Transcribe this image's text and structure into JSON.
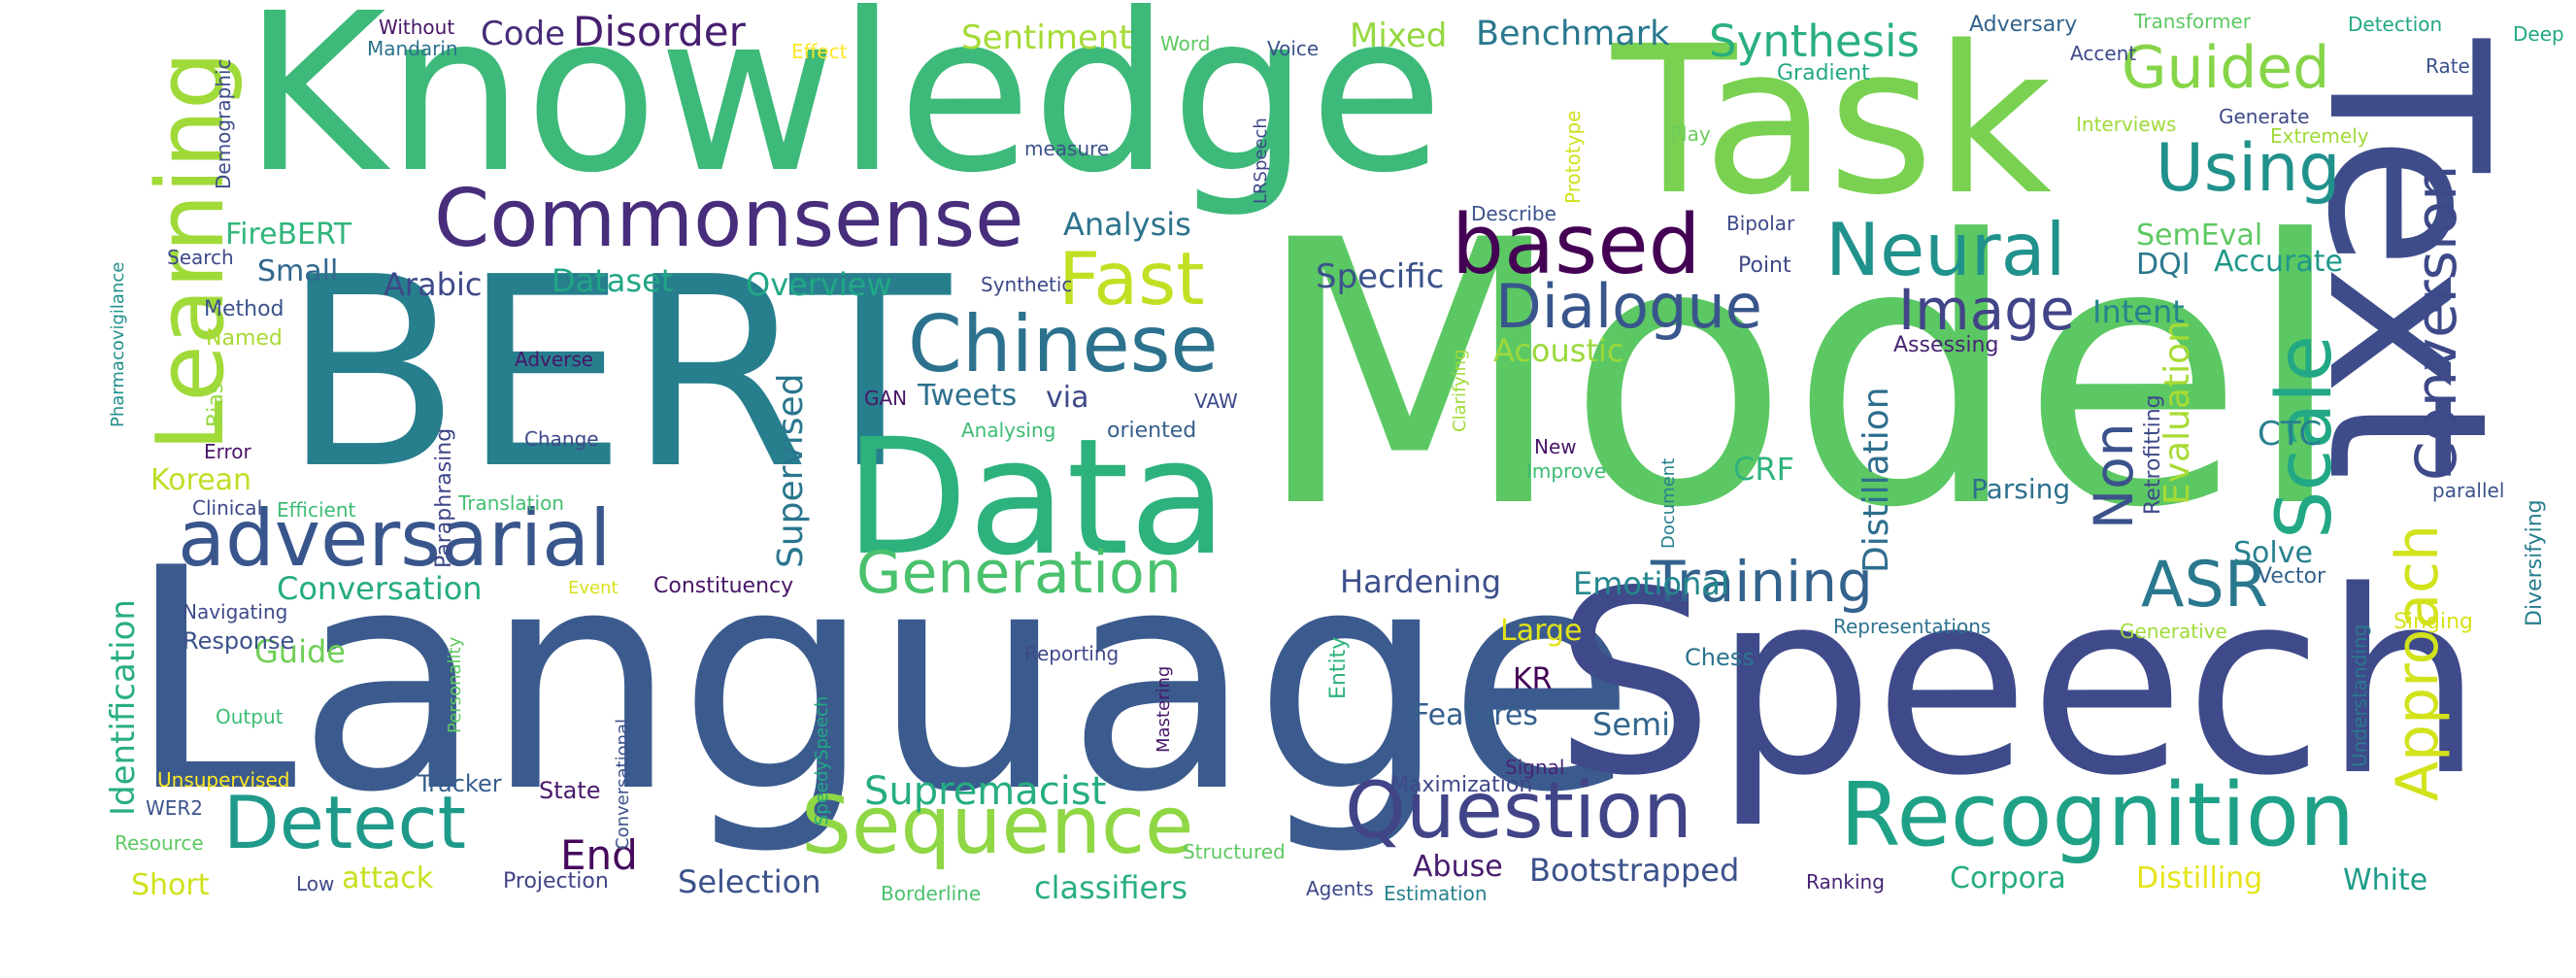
{
  "words": [
    {
      "text": "Language",
      "color": "#3b5b8e"
    },
    {
      "text": "Model",
      "color": "#5cc863"
    },
    {
      "text": "Speech",
      "color": "#3f4a8a"
    },
    {
      "text": "BERT",
      "color": "#277f8e"
    },
    {
      "text": "Knowledge",
      "color": "#3db97a"
    },
    {
      "text": "Task",
      "color": "#7ad151"
    },
    {
      "text": "Text",
      "color": "#3e4c8a"
    },
    {
      "text": "Data",
      "color": "#2db27d"
    },
    {
      "text": "Recognition",
      "color": "#1fa187"
    },
    {
      "text": "Learning",
      "color": "#a0da39"
    },
    {
      "text": "Question",
      "color": "#414487"
    },
    {
      "text": "Sequence",
      "color": "#8fd744"
    },
    {
      "text": "adversarial",
      "color": "#39568c"
    },
    {
      "text": "Commonsense",
      "color": "#472d7b"
    },
    {
      "text": "Chinese",
      "color": "#2c728e"
    },
    {
      "text": "Detect",
      "color": "#1f9a8a"
    },
    {
      "text": "Generation",
      "color": "#4ac16d"
    },
    {
      "text": "Scale",
      "color": "#22a884"
    },
    {
      "text": "Conversion",
      "color": "#3e4989"
    },
    {
      "text": "Approach",
      "color": "#d2e21b"
    },
    {
      "text": "Training",
      "color": "#33638d"
    },
    {
      "text": "ASR",
      "color": "#2a788e"
    },
    {
      "text": "based",
      "color": "#440154"
    },
    {
      "text": "Neural",
      "color": "#20928c"
    },
    {
      "text": "Dialogue",
      "color": "#39568c"
    },
    {
      "text": "Fast",
      "color": "#c2df23"
    },
    {
      "text": "Image",
      "color": "#414487"
    },
    {
      "text": "Using",
      "color": "#21918c"
    },
    {
      "text": "Guided",
      "color": "#86d549"
    },
    {
      "text": "Synthesis",
      "color": "#2ab07f"
    },
    {
      "text": "Disorder",
      "color": "#481f70"
    },
    {
      "text": "Non",
      "color": "#3b528b"
    },
    {
      "text": "Distillation",
      "color": "#2e6e8e"
    },
    {
      "text": "Supervised",
      "color": "#2a768e"
    },
    {
      "text": "Supremacist",
      "color": "#26ad81"
    },
    {
      "text": "Identification",
      "color": "#28ae80"
    },
    {
      "text": "Mixed",
      "color": "#95d840"
    },
    {
      "text": "Benchmark",
      "color": "#2a788e"
    },
    {
      "text": "Sentiment",
      "color": "#a5db36"
    },
    {
      "text": "Code",
      "color": "#472c7a"
    },
    {
      "text": "Evaluation",
      "color": "#a8db34"
    },
    {
      "text": "CTC",
      "color": "#277f8e"
    },
    {
      "text": "Intent",
      "color": "#25848e"
    },
    {
      "text": "Accurate",
      "color": "#1f988b"
    },
    {
      "text": "SemEval",
      "color": "#5ec962"
    },
    {
      "text": "DQI",
      "color": "#2a788e"
    },
    {
      "text": "Specific",
      "color": "#3b528b"
    },
    {
      "text": "Analysis",
      "color": "#2c738e"
    },
    {
      "text": "Overview",
      "color": "#22a785"
    },
    {
      "text": "Dataset",
      "color": "#21a685"
    },
    {
      "text": "Arabic",
      "color": "#3e4989"
    },
    {
      "text": "Small",
      "color": "#31688e"
    },
    {
      "text": "FireBERT",
      "color": "#31b57b"
    },
    {
      "text": "Tweets",
      "color": "#2d708e"
    },
    {
      "text": "via",
      "color": "#3e4a89"
    },
    {
      "text": "Korean",
      "color": "#bddf26"
    },
    {
      "text": "Conversation",
      "color": "#25ab82"
    },
    {
      "text": "Guide",
      "color": "#70cf57"
    },
    {
      "text": "Hardening",
      "color": "#3c4f8a"
    },
    {
      "text": "Emotional",
      "color": "#24878e"
    },
    {
      "text": "Large",
      "color": "#e2e418"
    },
    {
      "text": "KR",
      "color": "#440154"
    },
    {
      "text": "Features",
      "color": "#355f8d"
    },
    {
      "text": "Semi",
      "color": "#31678e"
    },
    {
      "text": "Parsing",
      "color": "#2d708e"
    },
    {
      "text": "Solve",
      "color": "#26818e"
    },
    {
      "text": "Acoustic",
      "color": "#9bd93c"
    },
    {
      "text": "CRF",
      "color": "#2eb37c"
    },
    {
      "text": "End",
      "color": "#46085c"
    },
    {
      "text": "Abuse",
      "color": "#481c6e"
    },
    {
      "text": "Bootstrapped",
      "color": "#3b528b"
    },
    {
      "text": "Corpora",
      "color": "#25ac82"
    },
    {
      "text": "Distilling",
      "color": "#e5e419"
    },
    {
      "text": "White",
      "color": "#1e9c89"
    },
    {
      "text": "Selection",
      "color": "#3b528b"
    },
    {
      "text": "classifiers",
      "color": "#29af7f"
    },
    {
      "text": "attack",
      "color": "#c8e020"
    },
    {
      "text": "Short",
      "color": "#d0e11c"
    },
    {
      "text": "Projection",
      "color": "#414487"
    },
    {
      "text": "Constituency",
      "color": "#481467"
    },
    {
      "text": "Paraphrasing",
      "color": "#3f4788"
    },
    {
      "text": "Retrofitting",
      "color": "#3e4a89"
    },
    {
      "text": "Diversifying",
      "color": "#277f8e"
    },
    {
      "text": "Tracker",
      "color": "#355e8d"
    },
    {
      "text": "State",
      "color": "#481a6c"
    },
    {
      "text": "Response",
      "color": "#3b528b"
    },
    {
      "text": "Navigating",
      "color": "#3e4989"
    },
    {
      "text": "Reporting",
      "color": "#3f4889"
    },
    {
      "text": "Entity",
      "color": "#2eb37c"
    },
    {
      "text": "Maximization",
      "color": "#3f4889"
    },
    {
      "text": "Vector",
      "color": "#33638d"
    },
    {
      "text": "Representations",
      "color": "#2c728e"
    },
    {
      "text": "Generative",
      "color": "#a0da39"
    },
    {
      "text": "Singing",
      "color": "#d8e219"
    },
    {
      "text": "Understanding",
      "color": "#2a788e"
    },
    {
      "text": "parallel",
      "color": "#3b528b"
    },
    {
      "text": "Chess",
      "color": "#2b748e"
    },
    {
      "text": "Signal",
      "color": "#482475"
    },
    {
      "text": "Structured",
      "color": "#5ec962"
    },
    {
      "text": "Estimation",
      "color": "#26818e"
    },
    {
      "text": "Agents",
      "color": "#3e4989"
    },
    {
      "text": "Ranking",
      "color": "#482475"
    },
    {
      "text": "Borderline",
      "color": "#4ac16d"
    },
    {
      "text": "Low",
      "color": "#3e4989"
    },
    {
      "text": "Resource",
      "color": "#5ec962"
    },
    {
      "text": "WER2",
      "color": "#3b528b"
    },
    {
      "text": "Unsupervised",
      "color": "#fde725"
    },
    {
      "text": "Output",
      "color": "#3dbc74"
    },
    {
      "text": "Clinical",
      "color": "#3e4989"
    },
    {
      "text": "Efficient",
      "color": "#3dbc74"
    },
    {
      "text": "Translation",
      "color": "#44bf70"
    },
    {
      "text": "Error",
      "color": "#481668"
    },
    {
      "text": "Bias",
      "color": "#95d840"
    },
    {
      "text": "Named",
      "color": "#a8db34"
    },
    {
      "text": "Method",
      "color": "#3b528b"
    },
    {
      "text": "Search",
      "color": "#3e4989"
    },
    {
      "text": "Pharmacovigilance",
      "color": "#218f8d"
    },
    {
      "text": "Demographic",
      "color": "#3e4c8a"
    },
    {
      "text": "Without",
      "color": "#481668"
    },
    {
      "text": "Mandarin",
      "color": "#2c728e"
    },
    {
      "text": "Effect",
      "color": "#fde725"
    },
    {
      "text": "Word",
      "color": "#5ec962"
    },
    {
      "text": "Voice",
      "color": "#3b528b"
    },
    {
      "text": "LRSpeech",
      "color": "#3e4989"
    },
    {
      "text": "Prototype",
      "color": "#d0e11c"
    },
    {
      "text": "Play",
      "color": "#6ccd5a"
    },
    {
      "text": "Gradient",
      "color": "#22a884"
    },
    {
      "text": "Adversary",
      "color": "#33638d"
    },
    {
      "text": "Accent",
      "color": "#3e4989"
    },
    {
      "text": "Transformer",
      "color": "#5ec962"
    },
    {
      "text": "Detection",
      "color": "#22a884"
    },
    {
      "text": "Deep",
      "color": "#22a884"
    },
    {
      "text": "Rate",
      "color": "#3b528b"
    },
    {
      "text": "Interviews",
      "color": "#a0da39"
    },
    {
      "text": "Generate",
      "color": "#3e4989"
    },
    {
      "text": "Extremely",
      "color": "#a0da39"
    },
    {
      "text": "measure",
      "color": "#3b528b"
    },
    {
      "text": "Synthetic",
      "color": "#3e4989"
    },
    {
      "text": "Describe",
      "color": "#3b528b"
    },
    {
      "text": "Bipolar",
      "color": "#3e4989"
    },
    {
      "text": "Point",
      "color": "#3e4989"
    },
    {
      "text": "Assessing",
      "color": "#482475"
    },
    {
      "text": "Clarifying",
      "color": "#a0da39"
    },
    {
      "text": "Adverse",
      "color": "#481668"
    },
    {
      "text": "Change",
      "color": "#3e4989"
    },
    {
      "text": "GAN",
      "color": "#481668"
    },
    {
      "text": "Analysing",
      "color": "#3dbc74"
    },
    {
      "text": "VAW",
      "color": "#3e4989"
    },
    {
      "text": "oriented",
      "color": "#355f8d"
    },
    {
      "text": "New",
      "color": "#481668"
    },
    {
      "text": "Improve",
      "color": "#3dbc74"
    },
    {
      "text": "Document",
      "color": "#26818e"
    },
    {
      "text": "Event",
      "color": "#d8e219"
    },
    {
      "text": "Personality",
      "color": "#5ec962"
    },
    {
      "text": "SpeedySpeech",
      "color": "#22a884"
    },
    {
      "text": "Conversational",
      "color": "#3b528b"
    },
    {
      "text": "Mastering",
      "color": "#481668"
    }
  ]
}
